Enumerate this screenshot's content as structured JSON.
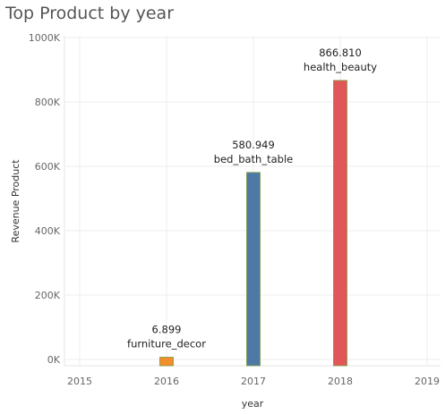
{
  "chart_data": {
    "type": "bar",
    "title": "Top Product by year",
    "xlabel": "year",
    "ylabel": "Revenue Product",
    "x_ticks": [
      "2015",
      "2016",
      "2017",
      "2018",
      "2019"
    ],
    "y_ticks": [
      "0K",
      "200K",
      "400K",
      "600K",
      "800K",
      "1000K"
    ],
    "ylim": [
      0,
      1000000
    ],
    "xlim": [
      2015,
      2019
    ],
    "grid": true,
    "bars": [
      {
        "year": 2016,
        "value": 6899,
        "value_label": "6.899",
        "product": "furniture_decor",
        "color": "#f28e2b"
      },
      {
        "year": 2017,
        "value": 580949,
        "value_label": "580.949",
        "product": "bed_bath_table",
        "color": "#4e79a7"
      },
      {
        "year": 2018,
        "value": 866810,
        "value_label": "866.810",
        "product": "health_beauty",
        "color": "#e15759"
      }
    ]
  }
}
